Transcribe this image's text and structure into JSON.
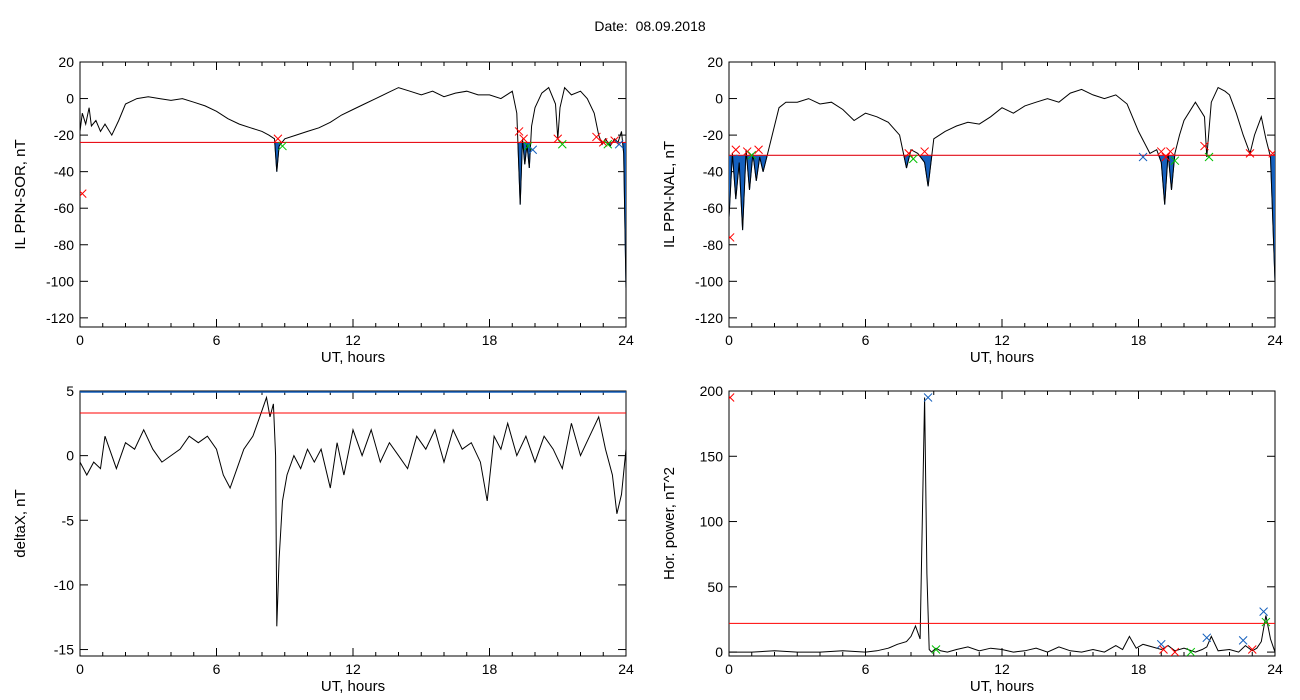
{
  "title": "Date:  08.09.2018",
  "colors": {
    "line": "#000000",
    "threshold": "#ff0000",
    "fill": "#1560bd",
    "marker_red": "#ff0000",
    "marker_blue": "#1560bd",
    "marker_green": "#00c000"
  },
  "chart_data": [
    {
      "type": "line",
      "id": "sor",
      "ylabel": "IL PPN-SOR, nT",
      "xlabel": "UT, hours",
      "xlim": [
        0,
        24
      ],
      "ylim": [
        -125,
        20
      ],
      "xticks": [
        0,
        6,
        12,
        18,
        24
      ],
      "yticks": [
        20,
        0,
        -20,
        -40,
        -60,
        -80,
        -100,
        -120
      ],
      "threshold": -24,
      "fill_below_threshold": true,
      "series": [
        {
          "x": [
            0,
            0.1,
            0.25,
            0.4,
            0.5,
            0.7,
            0.9,
            1.1,
            1.4,
            1.7,
            2.0,
            2.5,
            3.0,
            3.5,
            4.0,
            4.5,
            5.0,
            5.5,
            6.0,
            6.5,
            7.0,
            7.5,
            8.0,
            8.3,
            8.55,
            8.65,
            8.75,
            9.0,
            9.5,
            10.0,
            10.5,
            11.0,
            11.5,
            12.0,
            12.5,
            13.0,
            13.5,
            14.0,
            14.5,
            15.0,
            15.5,
            16.0,
            16.5,
            17.0,
            17.5,
            18.0,
            18.5,
            19.0,
            19.2,
            19.35,
            19.45,
            19.55,
            19.65,
            19.75,
            19.85,
            20.0,
            20.3,
            20.6,
            20.9,
            21.0,
            21.1,
            21.3,
            21.6,
            22.0,
            22.3,
            22.6,
            22.8,
            22.95,
            23.1,
            23.3,
            23.5,
            23.65,
            23.8,
            23.9,
            24.0
          ],
          "y": [
            -18,
            -8,
            -14,
            -5,
            -15,
            -12,
            -18,
            -14,
            -20,
            -12,
            -3,
            0,
            1,
            0,
            -1,
            0,
            -2,
            -4,
            -7,
            -11,
            -14,
            -16,
            -18,
            -20,
            -22,
            -40,
            -26,
            -22,
            -20,
            -18,
            -16,
            -13,
            -9,
            -6,
            -3,
            0,
            3,
            6,
            4,
            2,
            4,
            1,
            3,
            4,
            2,
            2,
            0,
            4,
            -8,
            -58,
            -22,
            -36,
            -25,
            -38,
            -15,
            -5,
            3,
            6,
            -3,
            -22,
            -5,
            6,
            2,
            4,
            0,
            -8,
            -20,
            -25,
            -22,
            -26,
            -22,
            -24,
            -18,
            -30,
            -104
          ]
        }
      ],
      "markers": [
        {
          "x": 0.1,
          "y": -52,
          "color": "red"
        },
        {
          "x": 8.7,
          "y": -22,
          "color": "red"
        },
        {
          "x": 8.9,
          "y": -26,
          "color": "green"
        },
        {
          "x": 19.3,
          "y": -18,
          "color": "red"
        },
        {
          "x": 19.5,
          "y": -22,
          "color": "red"
        },
        {
          "x": 19.7,
          "y": -26,
          "color": "green"
        },
        {
          "x": 19.9,
          "y": -28,
          "color": "blue"
        },
        {
          "x": 21.0,
          "y": -22,
          "color": "red"
        },
        {
          "x": 21.2,
          "y": -25,
          "color": "green"
        },
        {
          "x": 22.7,
          "y": -21,
          "color": "red"
        },
        {
          "x": 23.0,
          "y": -24,
          "color": "red"
        },
        {
          "x": 23.2,
          "y": -25,
          "color": "green"
        },
        {
          "x": 23.5,
          "y": -23,
          "color": "red"
        },
        {
          "x": 23.7,
          "y": -25,
          "color": "blue"
        }
      ]
    },
    {
      "type": "line",
      "id": "nal",
      "ylabel": "IL PPN-NAL, nT",
      "xlabel": "UT, hours",
      "xlim": [
        0,
        24
      ],
      "ylim": [
        -125,
        20
      ],
      "xticks": [
        0,
        6,
        12,
        18,
        24
      ],
      "yticks": [
        20,
        0,
        -20,
        -40,
        -60,
        -80,
        -100,
        -120
      ],
      "threshold": -31,
      "fill_below_threshold": true,
      "series": [
        {
          "x": [
            0,
            0.15,
            0.3,
            0.45,
            0.6,
            0.75,
            0.9,
            1.05,
            1.2,
            1.35,
            1.5,
            1.7,
            1.9,
            2.2,
            2.5,
            3.0,
            3.5,
            4.0,
            4.5,
            5.0,
            5.5,
            6.0,
            6.5,
            7.0,
            7.5,
            7.8,
            8.0,
            8.3,
            8.6,
            8.75,
            9.0,
            9.5,
            10.0,
            10.5,
            11.0,
            11.5,
            12.0,
            12.5,
            13.0,
            13.5,
            14.0,
            14.5,
            15.0,
            15.5,
            16.0,
            16.5,
            17.0,
            17.5,
            18.0,
            18.5,
            18.8,
            19.0,
            19.15,
            19.3,
            19.45,
            19.6,
            19.8,
            20.0,
            20.5,
            20.9,
            21.0,
            21.2,
            21.5,
            21.8,
            22.0,
            22.3,
            22.6,
            22.9,
            23.1,
            23.4,
            23.6,
            23.8,
            24.0
          ],
          "y": [
            -65,
            -30,
            -55,
            -35,
            -72,
            -28,
            -50,
            -30,
            -45,
            -32,
            -40,
            -30,
            -20,
            -5,
            -2,
            -2,
            0,
            -3,
            -2,
            -6,
            -12,
            -8,
            -10,
            -13,
            -20,
            -38,
            -28,
            -30,
            -35,
            -48,
            -22,
            -18,
            -15,
            -13,
            -14,
            -10,
            -5,
            -8,
            -4,
            -2,
            0,
            -2,
            3,
            5,
            2,
            0,
            2,
            -3,
            -18,
            -30,
            -28,
            -35,
            -58,
            -30,
            -50,
            -30,
            -20,
            -12,
            -2,
            -10,
            -32,
            -2,
            6,
            4,
            2,
            -8,
            -20,
            -30,
            -20,
            -10,
            -22,
            -32,
            -100
          ]
        }
      ],
      "markers": [
        {
          "x": 0.05,
          "y": -76,
          "color": "red"
        },
        {
          "x": 0.3,
          "y": -28,
          "color": "red"
        },
        {
          "x": 0.5,
          "y": -33,
          "color": "blue"
        },
        {
          "x": 0.8,
          "y": -29,
          "color": "red"
        },
        {
          "x": 1.0,
          "y": -31,
          "color": "green"
        },
        {
          "x": 1.3,
          "y": -28,
          "color": "red"
        },
        {
          "x": 7.9,
          "y": -30,
          "color": "red"
        },
        {
          "x": 8.1,
          "y": -33,
          "color": "green"
        },
        {
          "x": 8.6,
          "y": -29,
          "color": "red"
        },
        {
          "x": 18.2,
          "y": -32,
          "color": "blue"
        },
        {
          "x": 19.0,
          "y": -29,
          "color": "red"
        },
        {
          "x": 19.2,
          "y": -32,
          "color": "red"
        },
        {
          "x": 19.4,
          "y": -29,
          "color": "red"
        },
        {
          "x": 19.6,
          "y": -34,
          "color": "green"
        },
        {
          "x": 20.9,
          "y": -26,
          "color": "red"
        },
        {
          "x": 21.1,
          "y": -32,
          "color": "green"
        },
        {
          "x": 22.9,
          "y": -30,
          "color": "red"
        },
        {
          "x": 23.9,
          "y": -30,
          "color": "red"
        }
      ]
    },
    {
      "type": "line",
      "id": "deltax",
      "ylabel": "deltaX, nT",
      "xlabel": "UT, hours",
      "xlim": [
        0,
        24
      ],
      "ylim": [
        -15.5,
        5
      ],
      "xticks": [
        0,
        6,
        12,
        18,
        24
      ],
      "yticks": [
        5,
        0,
        -5,
        -10,
        -15
      ],
      "threshold": 3.3,
      "top_line": true,
      "fill_below_threshold": false,
      "series": [
        {
          "x": [
            0,
            0.3,
            0.6,
            0.9,
            1.1,
            1.3,
            1.6,
            2.0,
            2.4,
            2.8,
            3.2,
            3.6,
            4.0,
            4.4,
            4.8,
            5.2,
            5.6,
            6.0,
            6.3,
            6.6,
            6.9,
            7.2,
            7.6,
            8.0,
            8.2,
            8.35,
            8.5,
            8.6,
            8.65,
            8.75,
            8.9,
            9.1,
            9.4,
            9.7,
            10.0,
            10.3,
            10.6,
            11.0,
            11.3,
            11.6,
            12.0,
            12.4,
            12.8,
            13.2,
            13.6,
            14.0,
            14.4,
            14.8,
            15.2,
            15.6,
            16.0,
            16.4,
            16.8,
            17.2,
            17.6,
            17.9,
            18.2,
            18.5,
            18.8,
            19.2,
            19.6,
            20.0,
            20.4,
            20.8,
            21.2,
            21.6,
            22.0,
            22.4,
            22.8,
            23.1,
            23.4,
            23.6,
            23.8,
            24.0
          ],
          "y": [
            -0.5,
            -1.5,
            -0.5,
            -1.0,
            1.5,
            0.5,
            -1.0,
            1.0,
            0.5,
            2.0,
            0.5,
            -0.5,
            0.0,
            0.5,
            1.5,
            1.0,
            1.5,
            0.5,
            -1.5,
            -2.5,
            -1.0,
            0.5,
            1.5,
            3.5,
            4.5,
            3.0,
            4.0,
            0.0,
            -13.2,
            -8.0,
            -3.5,
            -1.5,
            0.0,
            -1.0,
            0.5,
            -0.5,
            0.5,
            -2.5,
            1.0,
            -1.5,
            2.0,
            0.0,
            2.0,
            -0.5,
            1.0,
            0.0,
            -1.0,
            1.5,
            0.5,
            2.0,
            -0.5,
            2.0,
            0.5,
            1.0,
            -0.5,
            -3.5,
            1.5,
            0.5,
            2.5,
            0.0,
            1.5,
            -0.5,
            1.5,
            0.5,
            -1.0,
            2.5,
            0.0,
            1.5,
            3.0,
            0.5,
            -1.5,
            -4.5,
            -3.0,
            0.5
          ]
        }
      ],
      "markers": []
    },
    {
      "type": "line",
      "id": "power",
      "ylabel": "Hor. power, nT^2",
      "xlabel": "UT, hours",
      "xlim": [
        0,
        24
      ],
      "ylim": [
        -3,
        200
      ],
      "xticks": [
        0,
        6,
        12,
        18,
        24
      ],
      "yticks": [
        200,
        150,
        100,
        50,
        0
      ],
      "threshold": 22,
      "fill_below_threshold": false,
      "series": [
        {
          "x": [
            0,
            1,
            2,
            3,
            4,
            5,
            6,
            6.5,
            7,
            7.4,
            7.8,
            8.0,
            8.2,
            8.4,
            8.6,
            8.7,
            8.8,
            8.9,
            9.1,
            9.3,
            9.6,
            10,
            10.5,
            11,
            11.5,
            12,
            12.5,
            13,
            13.5,
            14,
            14.5,
            15,
            15.5,
            16,
            16.5,
            17,
            17.3,
            17.6,
            17.9,
            18.2,
            18.6,
            19.0,
            19.3,
            19.6,
            20.0,
            20.5,
            20.8,
            21.0,
            21.2,
            21.5,
            22.0,
            22.4,
            22.7,
            23.0,
            23.2,
            23.4,
            23.6,
            23.8,
            24.0
          ],
          "y": [
            0,
            0,
            1,
            0,
            0,
            1,
            0,
            1,
            3,
            6,
            8,
            12,
            20,
            10,
            195,
            60,
            2,
            0,
            3,
            1,
            0,
            2,
            4,
            1,
            3,
            2,
            0,
            1,
            3,
            0,
            4,
            1,
            0,
            2,
            0,
            5,
            2,
            12,
            3,
            6,
            4,
            2,
            5,
            1,
            3,
            0,
            2,
            4,
            12,
            1,
            2,
            0,
            5,
            1,
            3,
            8,
            28,
            10,
            0
          ]
        }
      ],
      "markers": [
        {
          "x": 0.05,
          "y": 195,
          "color": "red"
        },
        {
          "x": 8.75,
          "y": 195,
          "color": "blue"
        },
        {
          "x": 9.1,
          "y": 2,
          "color": "green"
        },
        {
          "x": 19.0,
          "y": 6,
          "color": "blue"
        },
        {
          "x": 19.1,
          "y": 2,
          "color": "red"
        },
        {
          "x": 19.6,
          "y": 0,
          "color": "red"
        },
        {
          "x": 20.3,
          "y": 0,
          "color": "green"
        },
        {
          "x": 21.0,
          "y": 11,
          "color": "blue"
        },
        {
          "x": 22.6,
          "y": 9,
          "color": "blue"
        },
        {
          "x": 23.0,
          "y": 2,
          "color": "red"
        },
        {
          "x": 23.5,
          "y": 31,
          "color": "blue"
        },
        {
          "x": 23.6,
          "y": 23,
          "color": "green"
        }
      ]
    }
  ]
}
